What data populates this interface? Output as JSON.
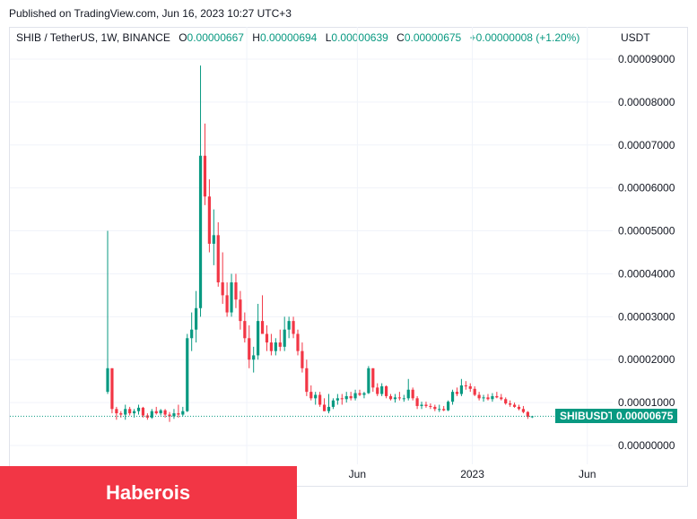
{
  "header": {
    "published": "Published on TradingView.com, Jun 16, 2023 10:27 UTC+3"
  },
  "legend": {
    "symbol": "SHIB / TetherUS, 1W, BINANCE",
    "o_label": "O",
    "o_value": "0.00000667",
    "h_label": "H",
    "h_value": "0.00000694",
    "l_label": "L",
    "l_value": "0.00000639",
    "c_label": "C",
    "c_value": "0.00000675",
    "change": "+0.00000008 (+1.20%)"
  },
  "watermark": "Haberois",
  "colors": {
    "up": "#089981",
    "down": "#f23645",
    "brand_overlay": "#f23645"
  },
  "chart_data": {
    "type": "candlestick",
    "symbol": "SHIBUSDT",
    "currency": "USDT",
    "last_price_label": "0.00000675",
    "ylim": [
      0,
      9.2e-05
    ],
    "y_ticks": [
      {
        "value": 9e-05,
        "label": "0.00009000"
      },
      {
        "value": 8e-05,
        "label": "0.00008000"
      },
      {
        "value": 7e-05,
        "label": "0.00007000"
      },
      {
        "value": 6e-05,
        "label": "0.00006000"
      },
      {
        "value": 5e-05,
        "label": "0.00005000"
      },
      {
        "value": 4e-05,
        "label": "0.00004000"
      },
      {
        "value": 3e-05,
        "label": "0.00003000"
      },
      {
        "value": 2e-05,
        "label": "0.00002000"
      },
      {
        "value": 1e-05,
        "label": "0.00001000"
      },
      {
        "value": 0.0,
        "label": "0.00000000"
      }
    ],
    "x_ticks": [
      {
        "index": 27,
        "label": ""
      },
      {
        "index": 52,
        "label": "Jun"
      },
      {
        "index": 78,
        "label": "2023"
      },
      {
        "index": 104,
        "label": "Jun"
      }
    ],
    "x_tick_labels": [
      "Jun",
      "2023",
      "Jun"
    ],
    "candles": [
      [
        1.25e-05,
        5e-05,
        1.2e-05,
        1.8e-05
      ],
      [
        1.8e-05,
        1.8e-05,
        7.5e-06,
        8.5e-06
      ],
      [
        8.5e-06,
        9e-06,
        6e-06,
        7.5e-06
      ],
      [
        7.5e-06,
        8e-06,
        6.5e-06,
        7.2e-06
      ],
      [
        7.2e-06,
        9.5e-06,
        6e-06,
        8.5e-06
      ],
      [
        8.5e-06,
        9e-06,
        7e-06,
        7.5e-06
      ],
      [
        7.5e-06,
        8.5e-06,
        6.5e-06,
        8e-06
      ],
      [
        8e-06,
        9.5e-06,
        7.2e-06,
        8.8e-06
      ],
      [
        8.8e-06,
        9e-06,
        6.5e-06,
        7e-06
      ],
      [
        7e-06,
        7.5e-06,
        6e-06,
        6.5e-06
      ],
      [
        6.5e-06,
        8.5e-06,
        6.2e-06,
        8e-06
      ],
      [
        8e-06,
        9e-06,
        7.2e-06,
        7.5e-06
      ],
      [
        7.5e-06,
        8.5e-06,
        7e-06,
        8.2e-06
      ],
      [
        8.2e-06,
        8.5e-06,
        6.5e-06,
        7.2e-06
      ],
      [
        7.2e-06,
        7.8e-06,
        5.5e-06,
        6.8e-06
      ],
      [
        6.8e-06,
        8.5e-06,
        6.2e-06,
        7.5e-06
      ],
      [
        7.5e-06,
        9.5e-06,
        6.5e-06,
        7.2e-06
      ],
      [
        7.2e-06,
        9e-06,
        6.8e-06,
        8e-06
      ],
      [
        8e-06,
        2.6e-05,
        7.8e-06,
        2.5e-05
      ],
      [
        2.5e-05,
        3.1e-05,
        2.2e-05,
        2.7e-05
      ],
      [
        2.7e-05,
        3.6e-05,
        2.4e-05,
        3.2e-05
      ],
      [
        3.2e-05,
        8.85e-05,
        3e-05,
        6.75e-05
      ],
      [
        6.75e-05,
        7.5e-05,
        5.6e-05,
        5.8e-05
      ],
      [
        5.8e-05,
        6.2e-05,
        4.5e-05,
        4.7e-05
      ],
      [
        4.7e-05,
        5.5e-05,
        4.2e-05,
        4.9e-05
      ],
      [
        4.9e-05,
        5.2e-05,
        3.7e-05,
        3.8e-05
      ],
      [
        3.8e-05,
        4.5e-05,
        3.3e-05,
        3.5e-05
      ],
      [
        3.5e-05,
        3.8e-05,
        3e-05,
        3.1e-05
      ],
      [
        3.1e-05,
        4e-05,
        3e-05,
        3.8e-05
      ],
      [
        3.8e-05,
        4e-05,
        3.2e-05,
        3.4e-05
      ],
      [
        3.4e-05,
        3.6e-05,
        2.7e-05,
        2.9e-05
      ],
      [
        2.9e-05,
        3.1e-05,
        2.4e-05,
        2.5e-05
      ],
      [
        2.5e-05,
        2.8e-05,
        1.8e-05,
        2e-05
      ],
      [
        2e-05,
        2.3e-05,
        1.7e-05,
        2.1e-05
      ],
      [
        2.1e-05,
        3.3e-05,
        2e-05,
        2.9e-05
      ],
      [
        2.9e-05,
        3.5e-05,
        2.6e-05,
        2.6e-05
      ],
      [
        2.6e-05,
        2.8e-05,
        2.2e-05,
        2.4e-05
      ],
      [
        2.4e-05,
        2.6e-05,
        2.1e-05,
        2.2e-05
      ],
      [
        2.2e-05,
        2.5e-05,
        2.1e-05,
        2.4e-05
      ],
      [
        2.4e-05,
        2.7e-05,
        2.2e-05,
        2.3e-05
      ],
      [
        2.3e-05,
        3e-05,
        2.2e-05,
        2.7e-05
      ],
      [
        2.7e-05,
        3e-05,
        2.5e-05,
        2.9e-05
      ],
      [
        2.9e-05,
        3e-05,
        2.5e-05,
        2.6e-05
      ],
      [
        2.6e-05,
        2.7e-05,
        2.1e-05,
        2.2e-05
      ],
      [
        2.2e-05,
        2.4e-05,
        1.7e-05,
        1.8e-05
      ],
      [
        1.8e-05,
        2e-05,
        1.15e-05,
        1.25e-05
      ],
      [
        1.25e-05,
        1.4e-05,
        1.05e-05,
        1.1e-05
      ],
      [
        1.1e-05,
        1.25e-05,
        9.5e-06,
        1.18e-05
      ],
      [
        1.18e-05,
        1.25e-05,
        9e-06,
        9.5e-06
      ],
      [
        9.5e-06,
        1.1e-05,
        8e-06,
        8e-06
      ],
      [
        8e-06,
        1.2e-05,
        7.5e-06,
        9e-06
      ],
      [
        9e-06,
        1.1e-05,
        8.5e-06,
        1.05e-05
      ],
      [
        1.05e-05,
        1.2e-05,
        9.5e-06,
        1.1e-05
      ],
      [
        1.1e-05,
        1.2e-05,
        9.5e-06,
        1.08e-05
      ],
      [
        1.08e-05,
        1.25e-05,
        1e-05,
        1.15e-05
      ],
      [
        1.15e-05,
        1.25e-05,
        1.05e-05,
        1.1e-05
      ],
      [
        1.1e-05,
        1.3e-05,
        1.05e-05,
        1.22e-05
      ],
      [
        1.22e-05,
        1.3e-05,
        1.15e-05,
        1.18e-05
      ],
      [
        1.18e-05,
        1.25e-05,
        1.1e-05,
        1.22e-05
      ],
      [
        1.22e-05,
        1.85e-05,
        1.2e-05,
        1.8e-05
      ],
      [
        1.8e-05,
        1.8e-05,
        1.25e-05,
        1.35e-05
      ],
      [
        1.35e-05,
        1.45e-05,
        1.15e-05,
        1.2e-05
      ],
      [
        1.2e-05,
        1.45e-05,
        1.15e-05,
        1.38e-05
      ],
      [
        1.38e-05,
        1.4e-05,
        1.1e-05,
        1.15e-05
      ],
      [
        1.15e-05,
        1.2e-05,
        1.05e-05,
        1.08e-05
      ],
      [
        1.08e-05,
        1.2e-05,
        1e-05,
        1.12e-05
      ],
      [
        1.12e-05,
        1.25e-05,
        1.05e-05,
        1.1e-05
      ],
      [
        1.1e-05,
        1.18e-05,
        1.02e-05,
        1.1e-05
      ],
      [
        1.1e-05,
        1.55e-05,
        1.05e-05,
        1.3e-05
      ],
      [
        1.3e-05,
        1.35e-05,
        1.05e-05,
        1.1e-05
      ],
      [
        1.1e-05,
        1.15e-05,
        8.5e-06,
        9.2e-06
      ],
      [
        9.2e-06,
        1.02e-05,
        8.5e-06,
        9.5e-06
      ],
      [
        9.5e-06,
        1.02e-05,
        8.8e-06,
        9.2e-06
      ],
      [
        9.2e-06,
        9.8e-06,
        8.5e-06,
        9e-06
      ],
      [
        9e-06,
        9.5e-06,
        8e-06,
        8.5e-06
      ],
      [
        8.5e-06,
        9.5e-06,
        7.8e-06,
        8.5e-06
      ],
      [
        8.5e-06,
        9.2e-06,
        8e-06,
        8.2e-06
      ],
      [
        8.2e-06,
        1.05e-05,
        8e-06,
        1.02e-05
      ],
      [
        1.02e-05,
        1.3e-05,
        9.5e-06,
        1.25e-05
      ],
      [
        1.25e-05,
        1.35e-05,
        1.15e-05,
        1.2e-05
      ],
      [
        1.2e-05,
        1.55e-05,
        1.15e-05,
        1.4e-05
      ],
      [
        1.4e-05,
        1.5e-05,
        1.3e-05,
        1.38e-05
      ],
      [
        1.38e-05,
        1.45e-05,
        1.25e-05,
        1.32e-05
      ],
      [
        1.32e-05,
        1.38e-05,
        1.15e-05,
        1.18e-05
      ],
      [
        1.18e-05,
        1.25e-05,
        1.05e-05,
        1.1e-05
      ],
      [
        1.1e-05,
        1.18e-05,
        1.02e-05,
        1.12e-05
      ],
      [
        1.12e-05,
        1.2e-05,
        1.05e-05,
        1.08e-05
      ],
      [
        1.08e-05,
        1.22e-05,
        1.02e-05,
        1.15e-05
      ],
      [
        1.15e-05,
        1.25e-05,
        1.1e-05,
        1.12e-05
      ],
      [
        1.12e-05,
        1.2e-05,
        1.05e-05,
        1.08e-05
      ],
      [
        1.08e-05,
        1.12e-05,
        9.5e-06,
        9.8e-06
      ],
      [
        9.8e-06,
        1.05e-05,
        9e-06,
        9.5e-06
      ],
      [
        9.5e-06,
        1e-05,
        8.8e-06,
        9e-06
      ],
      [
        9e-06,
        9.5e-06,
        8.2e-06,
        8.5e-06
      ],
      [
        8.5e-06,
        9.2e-06,
        7.5e-06,
        7.8e-06
      ],
      [
        7.8e-06,
        8e-06,
        6.2e-06,
        6.7e-06
      ],
      [
        6.7e-06,
        6.9e-06,
        6.4e-06,
        6.8e-06
      ]
    ]
  }
}
